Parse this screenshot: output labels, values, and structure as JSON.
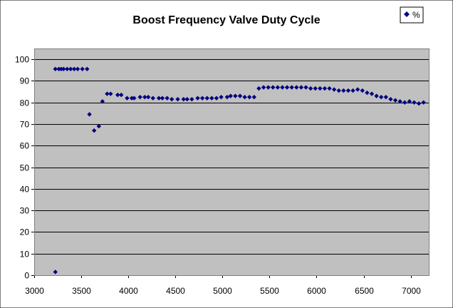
{
  "chart_data": {
    "type": "scatter",
    "title": "Boost Frequency Valve Duty Cycle",
    "xlabel": "",
    "ylabel": "",
    "xlim": [
      3000,
      7200
    ],
    "ylim": [
      0,
      105
    ],
    "xticks": [
      "3000",
      "3500",
      "4000",
      "4500",
      "5000",
      "5500",
      "6000",
      "6500",
      "7000"
    ],
    "yticks": [
      "0",
      "10",
      "20",
      "30",
      "40",
      "50",
      "60",
      "70",
      "80",
      "90",
      "100"
    ],
    "grid": "horizontal",
    "legend_position": "top-right",
    "plot_background": "#c0c0c0",
    "marker_color": "#000080",
    "series": [
      {
        "name": "%",
        "points": [
          [
            3225,
            1.5
          ],
          [
            3225,
            95.5
          ],
          [
            3262,
            95.5
          ],
          [
            3287,
            95.5
          ],
          [
            3312,
            95.5
          ],
          [
            3350,
            95.5
          ],
          [
            3387,
            95.5
          ],
          [
            3425,
            95.5
          ],
          [
            3462,
            95.5
          ],
          [
            3512,
            95.5
          ],
          [
            3562,
            95.5
          ],
          [
            3587,
            74.5
          ],
          [
            3637,
            67
          ],
          [
            3687,
            69
          ],
          [
            3725,
            80.5
          ],
          [
            3775,
            84
          ],
          [
            3812,
            84
          ],
          [
            3887,
            83.5
          ],
          [
            3925,
            83.5
          ],
          [
            3987,
            82
          ],
          [
            4037,
            82
          ],
          [
            4062,
            82
          ],
          [
            4125,
            82.5
          ],
          [
            4175,
            82.5
          ],
          [
            4212,
            82.5
          ],
          [
            4262,
            82
          ],
          [
            4325,
            82
          ],
          [
            4362,
            82
          ],
          [
            4412,
            82
          ],
          [
            4462,
            81.5
          ],
          [
            4525,
            81.5
          ],
          [
            4587,
            81.5
          ],
          [
            4625,
            81.5
          ],
          [
            4675,
            81.5
          ],
          [
            4737,
            82
          ],
          [
            4787,
            82
          ],
          [
            4837,
            82
          ],
          [
            4887,
            82
          ],
          [
            4937,
            82
          ],
          [
            4987,
            82.5
          ],
          [
            5050,
            82.5
          ],
          [
            5087,
            83
          ],
          [
            5137,
            83
          ],
          [
            5187,
            83
          ],
          [
            5237,
            82.5
          ],
          [
            5287,
            82.5
          ],
          [
            5337,
            82.5
          ],
          [
            5387,
            86.5
          ],
          [
            5437,
            87
          ],
          [
            5487,
            87
          ],
          [
            5537,
            87
          ],
          [
            5587,
            87
          ],
          [
            5637,
            87
          ],
          [
            5687,
            87
          ],
          [
            5737,
            87
          ],
          [
            5787,
            87
          ],
          [
            5837,
            87
          ],
          [
            5887,
            87
          ],
          [
            5937,
            86.5
          ],
          [
            5987,
            86.5
          ],
          [
            6037,
            86.5
          ],
          [
            6087,
            86.5
          ],
          [
            6137,
            86.5
          ],
          [
            6187,
            86
          ],
          [
            6237,
            85.5
          ],
          [
            6287,
            85.5
          ],
          [
            6337,
            85.5
          ],
          [
            6387,
            85.5
          ],
          [
            6437,
            86
          ],
          [
            6487,
            85.5
          ],
          [
            6537,
            84.5
          ],
          [
            6587,
            84
          ],
          [
            6637,
            83
          ],
          [
            6687,
            82.5
          ],
          [
            6737,
            82.5
          ],
          [
            6787,
            81.5
          ],
          [
            6837,
            81
          ],
          [
            6887,
            80.5
          ],
          [
            6937,
            80
          ],
          [
            6987,
            80.5
          ],
          [
            7037,
            80
          ],
          [
            7087,
            79.5
          ],
          [
            7137,
            80
          ]
        ]
      }
    ]
  }
}
